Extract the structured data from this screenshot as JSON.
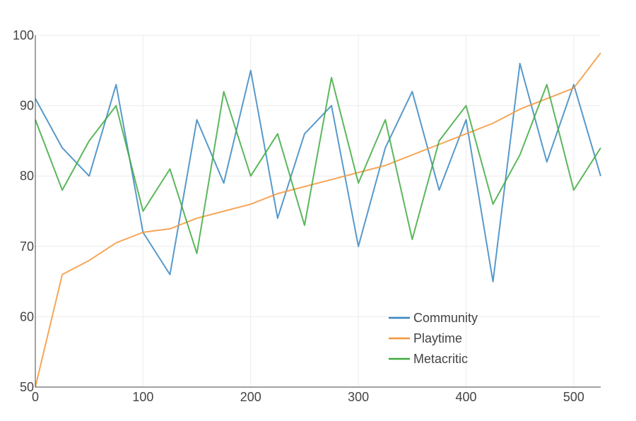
{
  "chart_data": {
    "type": "line",
    "title": "",
    "xlabel": "",
    "ylabel": "",
    "xlim": [
      0,
      525
    ],
    "ylim": [
      50,
      100
    ],
    "x_ticks": [
      0,
      100,
      200,
      300,
      400,
      500
    ],
    "y_ticks": [
      50,
      60,
      70,
      80,
      90,
      100
    ],
    "grid": true,
    "legend_position": "bottom-right",
    "x": [
      0,
      25,
      50,
      75,
      100,
      125,
      150,
      175,
      200,
      225,
      250,
      275,
      300,
      325,
      350,
      375,
      400,
      425,
      450,
      475,
      500,
      525
    ],
    "series": [
      {
        "name": "Community",
        "color": "#3a87c2",
        "values": [
          91,
          84,
          80,
          93,
          72,
          66,
          88,
          79,
          95,
          74,
          86,
          90,
          70,
          84,
          92,
          78,
          88,
          65,
          96,
          82,
          93,
          80
        ]
      },
      {
        "name": "Playtime",
        "color": "#f5963b",
        "values": [
          50,
          66,
          68,
          70.5,
          72,
          72.5,
          74,
          75,
          76,
          77.5,
          78.5,
          79.5,
          80.5,
          81.5,
          83,
          84.5,
          86,
          87.5,
          89.5,
          91,
          92.5,
          97.5
        ]
      },
      {
        "name": "Metacritic",
        "color": "#3eaa3e",
        "values": [
          88,
          78,
          85,
          90,
          75,
          81,
          69,
          92,
          80,
          86,
          73,
          94,
          79,
          88,
          71,
          85,
          90,
          76,
          83,
          93,
          78,
          84
        ]
      }
    ]
  },
  "legend": {
    "items": [
      "Community",
      "Playtime",
      "Metacritic"
    ]
  }
}
